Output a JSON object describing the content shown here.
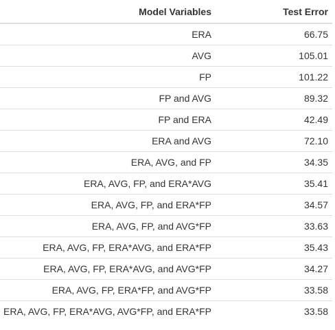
{
  "table": {
    "headers": [
      "Model Variables",
      "Test Error"
    ],
    "rows": [
      {
        "model": "ERA",
        "error": "66.75"
      },
      {
        "model": "AVG",
        "error": "105.01"
      },
      {
        "model": "FP",
        "error": "101.22"
      },
      {
        "model": "FP and AVG",
        "error": "89.32"
      },
      {
        "model": "FP and ERA",
        "error": "42.49"
      },
      {
        "model": "ERA and AVG",
        "error": "72.10"
      },
      {
        "model": "ERA, AVG, and FP",
        "error": "34.35"
      },
      {
        "model": "ERA, AVG, FP, and ERA*AVG",
        "error": "35.41"
      },
      {
        "model": "ERA, AVG, FP, and ERA*FP",
        "error": "34.57"
      },
      {
        "model": "ERA, AVG, FP, and AVG*FP",
        "error": "33.63"
      },
      {
        "model": "ERA, AVG, FP, ERA*AVG, and ERA*FP",
        "error": "35.43"
      },
      {
        "model": "ERA, AVG, FP, ERA*AVG, and AVG*FP",
        "error": "34.27"
      },
      {
        "model": "ERA, AVG, FP, ERA*FP, and AVG*FP",
        "error": "33.58"
      },
      {
        "model": "ERA, AVG, FP, ERA*AVG, AVG*FP, and ERA*FP",
        "error": "33.58"
      }
    ]
  }
}
